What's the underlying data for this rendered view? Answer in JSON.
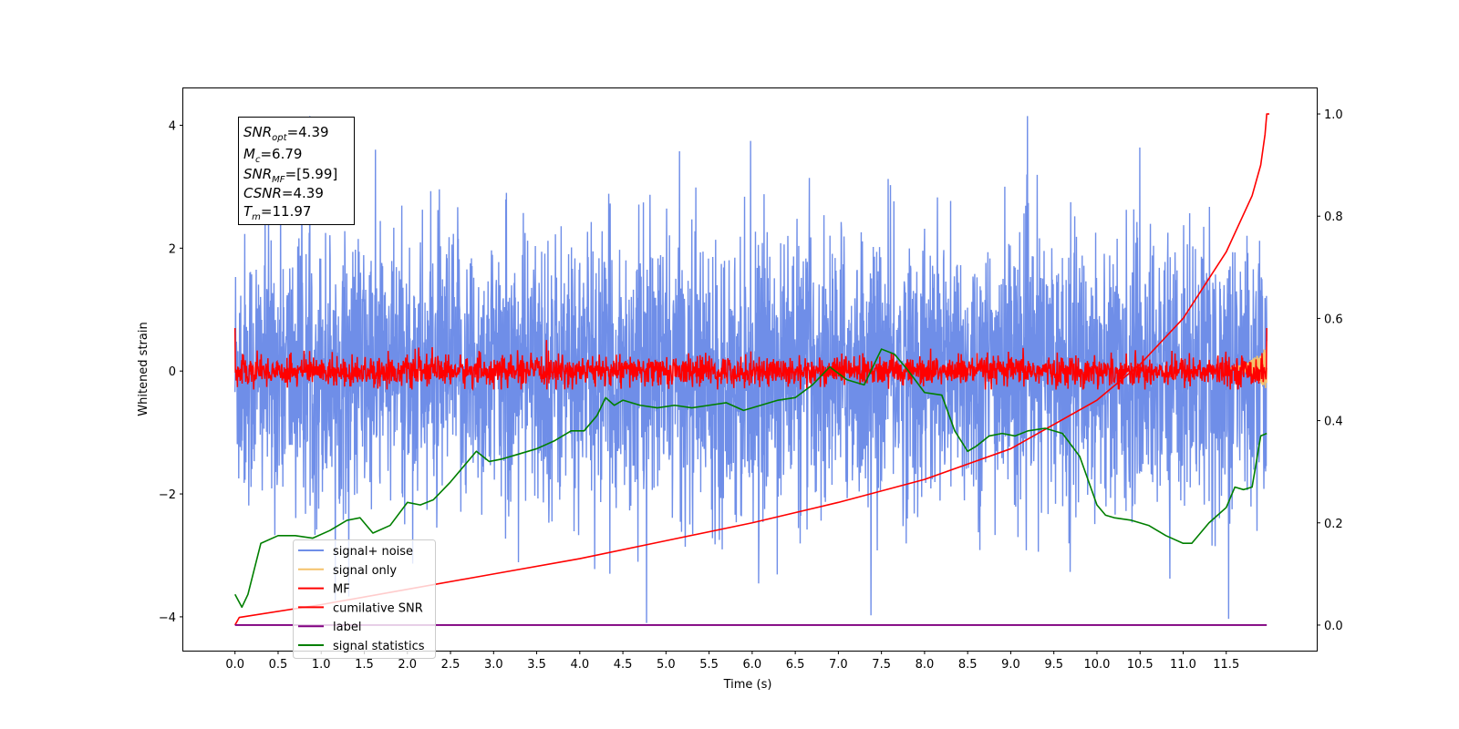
{
  "chart_data": {
    "type": "line",
    "title": "",
    "xlabel": "Time (s)",
    "ylabel": "Whitened strain",
    "xlim": [
      -0.6,
      12.55
    ],
    "ylim": [
      -4.55,
      4.6
    ],
    "y2lim": [
      -0.05,
      1.05
    ],
    "x_ticks": [
      "0.0",
      "0.5",
      "1.0",
      "1.5",
      "2.0",
      "2.5",
      "3.0",
      "3.5",
      "4.0",
      "4.5",
      "5.0",
      "5.5",
      "6.0",
      "6.5",
      "7.0",
      "7.5",
      "8.0",
      "8.5",
      "9.0",
      "9.5",
      "10.0",
      "10.5",
      "11.0",
      "11.5"
    ],
    "y_ticks": [
      "4",
      "2",
      "0",
      "−2",
      "−4"
    ],
    "y2_ticks": [
      "1.0",
      "0.8",
      "0.6",
      "0.4",
      "0.2",
      "0.0"
    ],
    "info_box": {
      "snr_opt": "=4.39",
      "mc": "=6.79",
      "snr_mf": "=[5.99]",
      "csnr": "=4.39",
      "tm": "=11.97"
    },
    "legend": {
      "placement": "lower-left",
      "entries": [
        {
          "label": "signal+ noise",
          "color": "#6f8ee8"
        },
        {
          "label": "signal only",
          "color": "#f5c26b"
        },
        {
          "label": "MF",
          "color": "#ff0000"
        },
        {
          "label": "cumilative SNR",
          "color": "#ff0000"
        },
        {
          "label": "label",
          "color": "#800080"
        },
        {
          "label": "signal statistics",
          "color": "#007f00"
        }
      ]
    },
    "series": [
      {
        "name": "signal+ noise",
        "axis": "left",
        "color": "#6f8ee8",
        "t_range": [
          0,
          11.97
        ],
        "amplitude_std": 1.1
      },
      {
        "name": "signal only",
        "axis": "left",
        "color": "#f5c26b",
        "t_range": [
          11.5,
          11.97
        ]
      },
      {
        "name": "MF",
        "axis": "left",
        "color": "#ff0000",
        "t_range": [
          0,
          11.97
        ],
        "amplitude_std": 0.12
      },
      {
        "name": "cumilative SNR",
        "axis": "right",
        "color": "#ff0000",
        "x": [
          0,
          0.05,
          1,
          2,
          3,
          4,
          5,
          6,
          7,
          8,
          9,
          10,
          10.5,
          11,
          11.5,
          11.8,
          11.9,
          11.95,
          11.97,
          12.0
        ],
        "y": [
          0.0,
          0.015,
          0.04,
          0.07,
          0.1,
          0.13,
          0.165,
          0.2,
          0.24,
          0.285,
          0.345,
          0.44,
          0.51,
          0.6,
          0.73,
          0.84,
          0.9,
          0.96,
          1.0,
          1.0
        ]
      },
      {
        "name": "label",
        "axis": "right",
        "color": "#800080",
        "x": [
          0,
          11.97
        ],
        "y": [
          0.0,
          0.0
        ]
      },
      {
        "name": "signal statistics",
        "axis": "right",
        "color": "#007f00",
        "x": [
          0,
          0.08,
          0.15,
          0.3,
          0.5,
          0.7,
          0.9,
          1.1,
          1.3,
          1.45,
          1.6,
          1.8,
          2.0,
          2.15,
          2.3,
          2.5,
          2.65,
          2.8,
          2.95,
          3.1,
          3.3,
          3.5,
          3.7,
          3.9,
          4.05,
          4.2,
          4.3,
          4.4,
          4.5,
          4.7,
          4.9,
          5.1,
          5.3,
          5.5,
          5.7,
          5.9,
          6.1,
          6.3,
          6.5,
          6.7,
          6.9,
          7.1,
          7.3,
          7.5,
          7.65,
          7.8,
          8.0,
          8.2,
          8.35,
          8.5,
          8.6,
          8.75,
          8.9,
          9.05,
          9.2,
          9.4,
          9.6,
          9.8,
          10.0,
          10.1,
          10.2,
          10.4,
          10.6,
          10.8,
          11.0,
          11.1,
          11.2,
          11.3,
          11.4,
          11.5,
          11.6,
          11.7,
          11.8,
          11.9,
          11.97
        ],
        "y": [
          0.06,
          0.035,
          0.06,
          0.16,
          0.175,
          0.175,
          0.17,
          0.185,
          0.205,
          0.21,
          0.18,
          0.195,
          0.24,
          0.235,
          0.245,
          0.28,
          0.31,
          0.34,
          0.32,
          0.325,
          0.335,
          0.345,
          0.36,
          0.38,
          0.38,
          0.41,
          0.445,
          0.43,
          0.44,
          0.43,
          0.425,
          0.43,
          0.425,
          0.43,
          0.435,
          0.42,
          0.43,
          0.44,
          0.445,
          0.47,
          0.505,
          0.48,
          0.47,
          0.54,
          0.53,
          0.5,
          0.455,
          0.45,
          0.38,
          0.34,
          0.35,
          0.37,
          0.375,
          0.37,
          0.38,
          0.385,
          0.375,
          0.33,
          0.235,
          0.215,
          0.21,
          0.205,
          0.195,
          0.175,
          0.16,
          0.16,
          0.18,
          0.2,
          0.215,
          0.23,
          0.27,
          0.265,
          0.27,
          0.37,
          0.375
        ]
      }
    ]
  }
}
